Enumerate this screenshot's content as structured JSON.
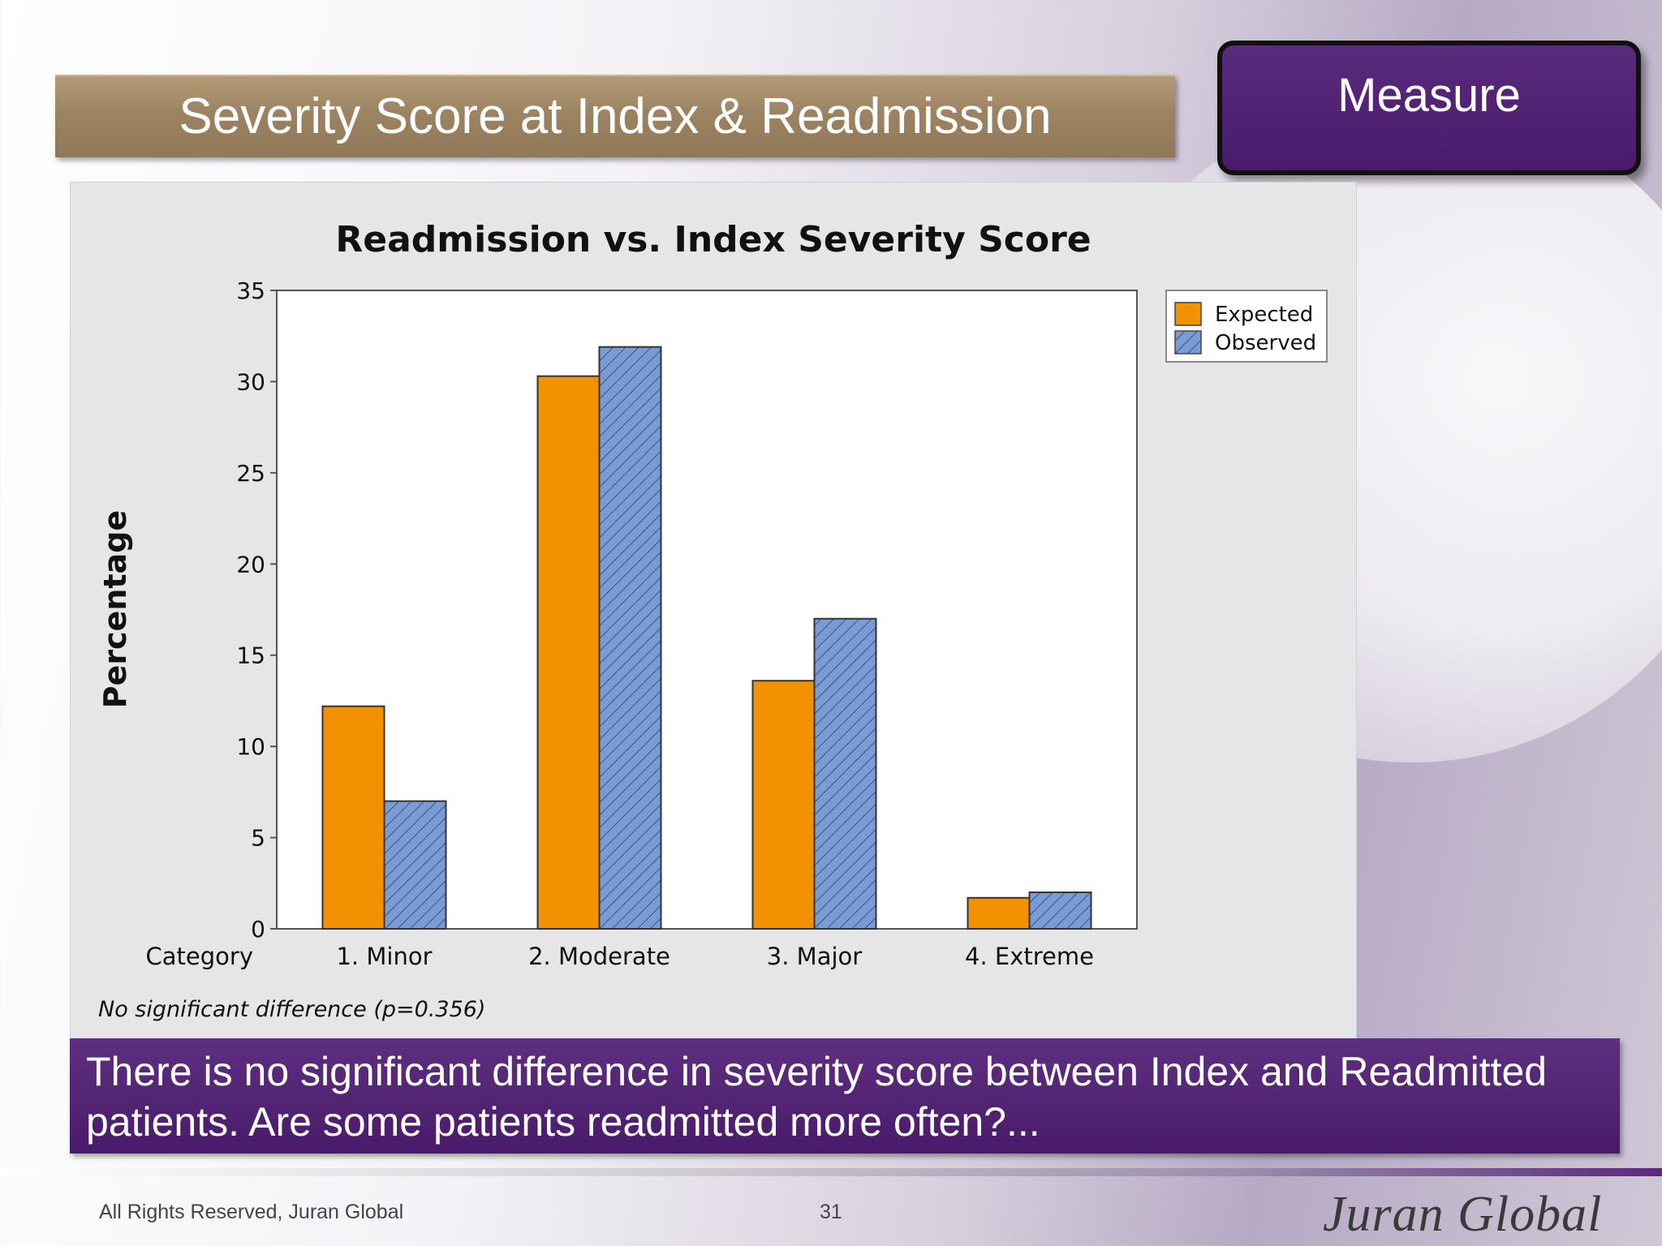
{
  "slide": {
    "title": "Severity Score at Index & Readmission",
    "section_label": "Measure",
    "callout": "There is no significant difference in severity score between Index and Readmitted patients.  Are some patients readmitted more often?...",
    "footer_copyright": "All Rights Reserved, Juran Global",
    "page_number": "31",
    "logo_text": "JURAN GLOBAL"
  },
  "chart_data": {
    "type": "bar",
    "title": "Readmission vs. Index Severity Score",
    "ylabel": "Percentage",
    "xlabel": "Category",
    "categories": [
      "1. Minor",
      "2. Moderate",
      "3. Major",
      "4. Extreme"
    ],
    "series": [
      {
        "name": "Expected",
        "values": [
          12.2,
          30.3,
          13.6,
          1.7
        ],
        "color": "#f39200",
        "pattern": "solid"
      },
      {
        "name": "Observed",
        "values": [
          7.0,
          31.9,
          17.0,
          2.0
        ],
        "color": "#7a9cd6",
        "pattern": "hatched"
      }
    ],
    "ylim": [
      0,
      35
    ],
    "yticks": [
      0,
      5,
      10,
      15,
      20,
      25,
      30,
      35
    ],
    "legend_position": "top-right",
    "grid": false,
    "annotation": "No significant difference (p=0.356)"
  }
}
